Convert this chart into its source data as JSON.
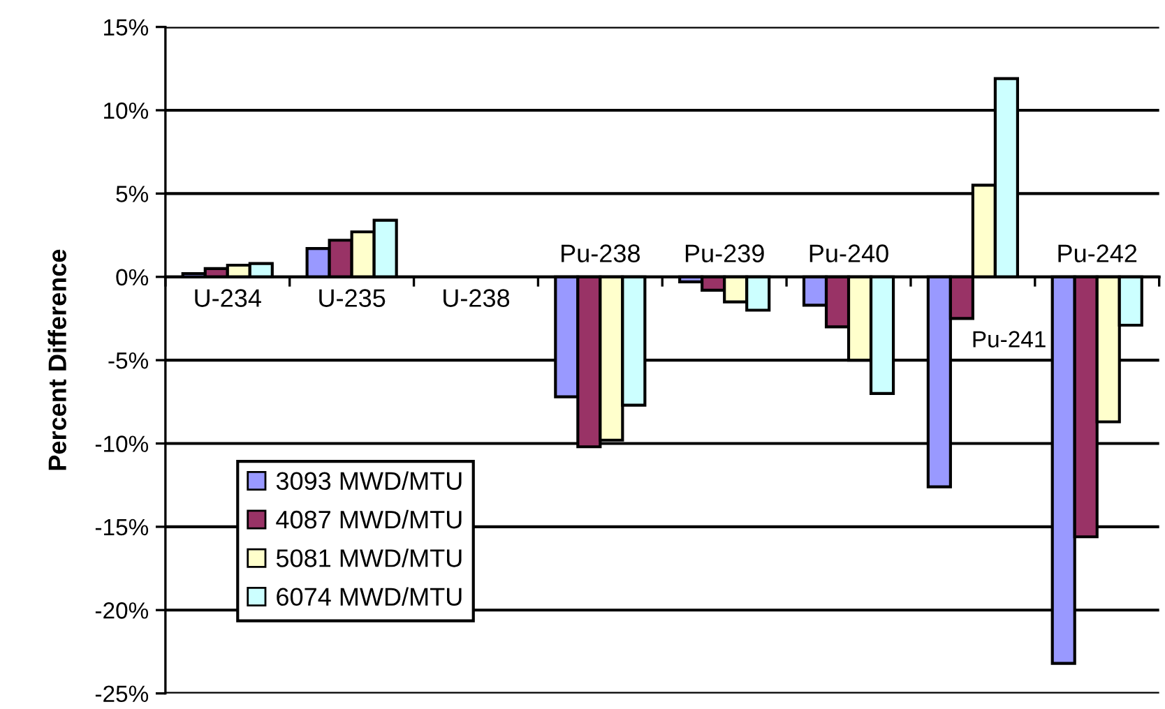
{
  "chart_data": {
    "type": "bar",
    "ylabel": "Percent Difference",
    "categories": [
      "U-234",
      "U-235",
      "U-238",
      "Pu-238",
      "Pu-239",
      "Pu-240",
      "Pu-241",
      "Pu-242"
    ],
    "series": [
      {
        "name": "3093 MWD/MTU",
        "color": "#9999ff",
        "values": [
          0.2,
          1.7,
          null,
          -7.2,
          -0.3,
          -1.7,
          -12.6,
          -23.2
        ]
      },
      {
        "name": "4087 MWD/MTU",
        "color": "#993366",
        "values": [
          0.5,
          2.2,
          null,
          -10.2,
          -0.8,
          -3.0,
          -2.5,
          -15.6
        ]
      },
      {
        "name": "5081 MWD/MTU",
        "color": "#ffffcc",
        "values": [
          0.7,
          2.7,
          null,
          -9.8,
          -1.5,
          -5.0,
          5.5,
          -8.7
        ]
      },
      {
        "name": "6074 MWD/MTU",
        "color": "#ccffff",
        "values": [
          0.8,
          3.4,
          null,
          -7.7,
          -2.0,
          -7.0,
          11.9,
          -2.9
        ]
      }
    ],
    "ylim": [
      -25,
      15
    ],
    "yticks": [
      {
        "value": -25,
        "label": "-25%"
      },
      {
        "value": -20,
        "label": "-20%"
      },
      {
        "value": -15,
        "label": "-15%"
      },
      {
        "value": -10,
        "label": "-10%"
      },
      {
        "value": -5,
        "label": "-5%"
      },
      {
        "value": 0,
        "label": "0%"
      },
      {
        "value": 5,
        "label": "5%"
      },
      {
        "value": 10,
        "label": "10%"
      },
      {
        "value": 15,
        "label": "15%"
      }
    ],
    "grid": "y",
    "legend": "bottom left"
  }
}
